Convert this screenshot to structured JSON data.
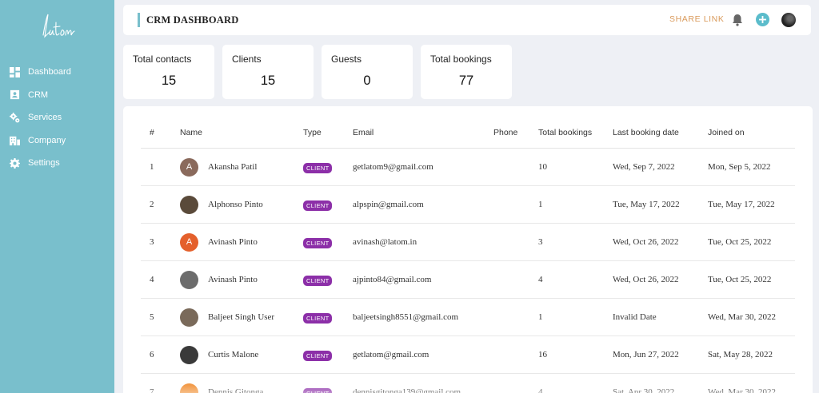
{
  "app": {
    "logo_text": "latom"
  },
  "sidebar": {
    "items": [
      {
        "label": "Dashboard",
        "icon": "dashboard-icon"
      },
      {
        "label": "CRM",
        "icon": "contact-card-icon"
      },
      {
        "label": "Services",
        "icon": "gears-icon"
      },
      {
        "label": "Company",
        "icon": "building-icon"
      },
      {
        "label": "Settings",
        "icon": "gear-icon"
      }
    ]
  },
  "header": {
    "title": "CRM DASHBOARD",
    "share_link": "SHARE LINK",
    "icons": [
      "bell-icon",
      "plus-circle-icon",
      "user-avatar"
    ]
  },
  "stats": [
    {
      "label": "Total contacts",
      "value": "15"
    },
    {
      "label": "Clients",
      "value": "15"
    },
    {
      "label": "Guests",
      "value": "0"
    },
    {
      "label": "Total bookings",
      "value": "77"
    }
  ],
  "table": {
    "columns": [
      "#",
      "Name",
      "Type",
      "Email",
      "Phone",
      "Total bookings",
      "Last booking date",
      "Joined on"
    ],
    "rows": [
      {
        "num": "1",
        "name": "Akansha Patil",
        "avatar_letter": "A",
        "avatar_color": "#8a6a5c",
        "type": "CLIENT",
        "email": "getlatom9@gmail.com",
        "phone": "",
        "bookings": "10",
        "last_booking": "Wed, Sep 7, 2022",
        "joined": "Mon, Sep 5, 2022"
      },
      {
        "num": "2",
        "name": "Alphonso Pinto",
        "avatar_letter": "",
        "avatar_color": "#5a4a3a",
        "type": "CLIENT",
        "email": "alpspin@gmail.com",
        "phone": "",
        "bookings": "1",
        "last_booking": "Tue, May 17, 2022",
        "joined": "Tue, May 17, 2022"
      },
      {
        "num": "3",
        "name": "Avinash Pinto",
        "avatar_letter": "A",
        "avatar_color": "#e4602c",
        "type": "CLIENT",
        "email": "avinash@latom.in",
        "phone": "",
        "bookings": "3",
        "last_booking": "Wed, Oct 26, 2022",
        "joined": "Tue, Oct 25, 2022"
      },
      {
        "num": "4",
        "name": "Avinash Pinto",
        "avatar_letter": "",
        "avatar_color": "#6c6c6c",
        "type": "CLIENT",
        "email": "ajpinto84@gmail.com",
        "phone": "",
        "bookings": "4",
        "last_booking": "Wed, Oct 26, 2022",
        "joined": "Tue, Oct 25, 2022"
      },
      {
        "num": "5",
        "name": "Baljeet Singh User",
        "avatar_letter": "",
        "avatar_color": "#7a6a5a",
        "type": "CLIENT",
        "email": "baljeetsingh8551@gmail.com",
        "phone": "",
        "bookings": "1",
        "last_booking": "Invalid Date",
        "joined": "Wed, Mar 30, 2022"
      },
      {
        "num": "6",
        "name": "Curtis Malone",
        "avatar_letter": "",
        "avatar_color": "#3a3a3a",
        "type": "CLIENT",
        "email": "getlatom@gmail.com",
        "phone": "",
        "bookings": "16",
        "last_booking": "Mon, Jun 27, 2022",
        "joined": "Sat, May 28, 2022"
      },
      {
        "num": "7",
        "name": "Dennis Gitonga",
        "avatar_letter": "",
        "avatar_color": "#f08a2a",
        "type": "CLIENT",
        "email": "dennisgitonga139@gmail.com",
        "phone": "",
        "bookings": "4",
        "last_booking": "Sat, Apr 30, 2022",
        "joined": "Wed, Mar 30, 2022"
      }
    ]
  }
}
